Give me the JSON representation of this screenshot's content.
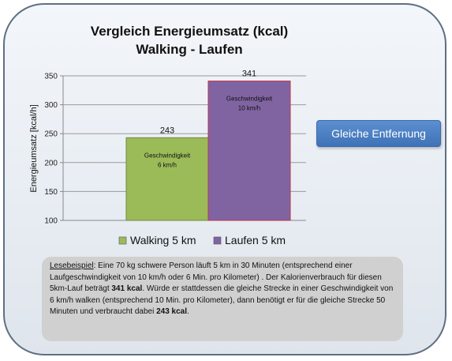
{
  "chart_data": {
    "type": "bar",
    "title_line1": "Vergleich Energieumsatz (kcal)",
    "title_line2": "Walking - Laufen",
    "ylabel": "Energieumsatz [kcal/h]",
    "ylim": [
      100,
      350
    ],
    "yticks": [
      "100",
      "150",
      "200",
      "250",
      "300",
      "350"
    ],
    "grid": true,
    "legend_position": "bottom",
    "series": [
      {
        "name": "Walking 5 km",
        "value": 243,
        "label": "243",
        "inner_line1": "Geschwindigkeit",
        "inner_line2": "6 km/h",
        "color": "#9bbb59"
      },
      {
        "name": "Laufen 5 km",
        "value": 341,
        "label": "341",
        "inner_line1": "Geschwindigkeit",
        "inner_line2": "10 km/h",
        "color": "#8064a2"
      }
    ]
  },
  "callout": {
    "label": "Gleiche Entfernung"
  },
  "note": {
    "lead": "Lesebeispiel",
    "p1": ":  Eine 70 kg schwere Person läuft 5 km in 30 Minuten (entsprechend einer Laufgeschwindigkeit von 10 km/h oder 6 Min. pro Kilometer) . Der Kalorienverbrauch für diesen 5km-Lauf beträgt ",
    "b1": "341 kcal",
    "p2": ".  Würde er stattdessen die gleiche Strecke in einer Geschwindigkeit von 6 km/h walken (entsprechend 10 Min. pro Kilometer), dann benötigt er für die gleiche Strecke  50 Minuten und verbraucht dabei ",
    "b2": "243 kcal",
    "p3": "."
  }
}
